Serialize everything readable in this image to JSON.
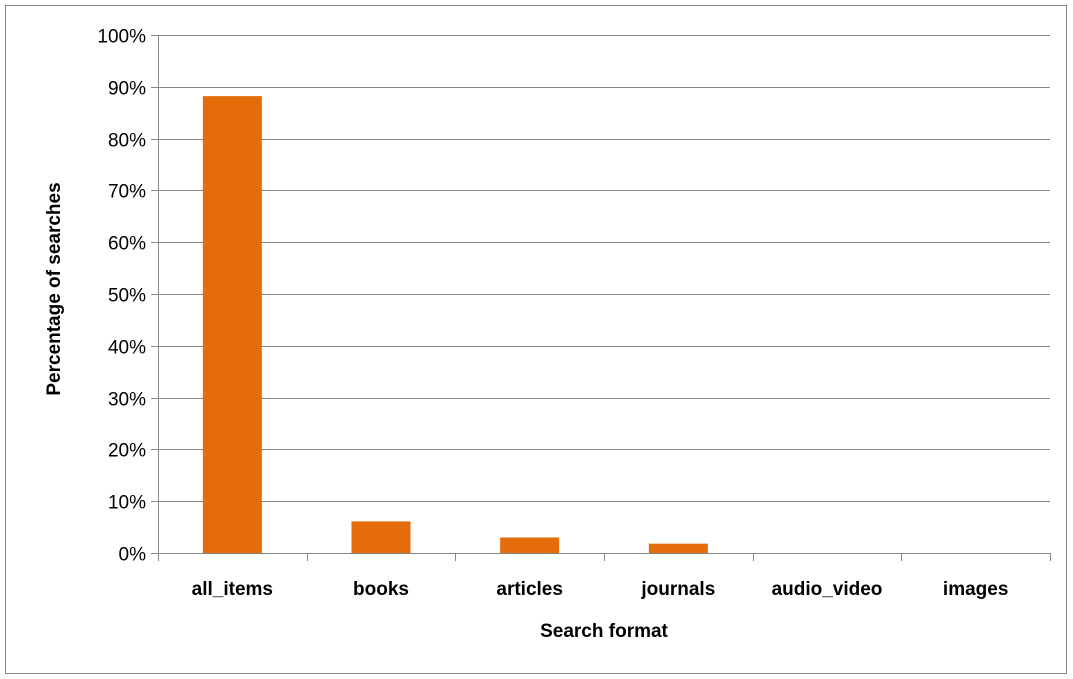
{
  "chart_data": {
    "type": "bar",
    "categories": [
      "all_items",
      "books",
      "articles",
      "journals",
      "audio_video",
      "images"
    ],
    "values": [
      88.2,
      6.1,
      3.0,
      1.8,
      0,
      0
    ],
    "y_unit": "%",
    "ylim": [
      0,
      100
    ],
    "y_ticks": [
      0,
      10,
      20,
      30,
      40,
      50,
      60,
      70,
      80,
      90,
      100
    ],
    "y_tick_labels": [
      "0%",
      "10%",
      "20%",
      "30%",
      "40%",
      "50%",
      "60%",
      "70%",
      "80%",
      "90%",
      "100%"
    ],
    "xlabel": "Search format",
    "ylabel": "Percentage of searches",
    "grid": true,
    "legend": "none",
    "bar_color": "#E46C0A",
    "gridline_color": "#868686"
  }
}
